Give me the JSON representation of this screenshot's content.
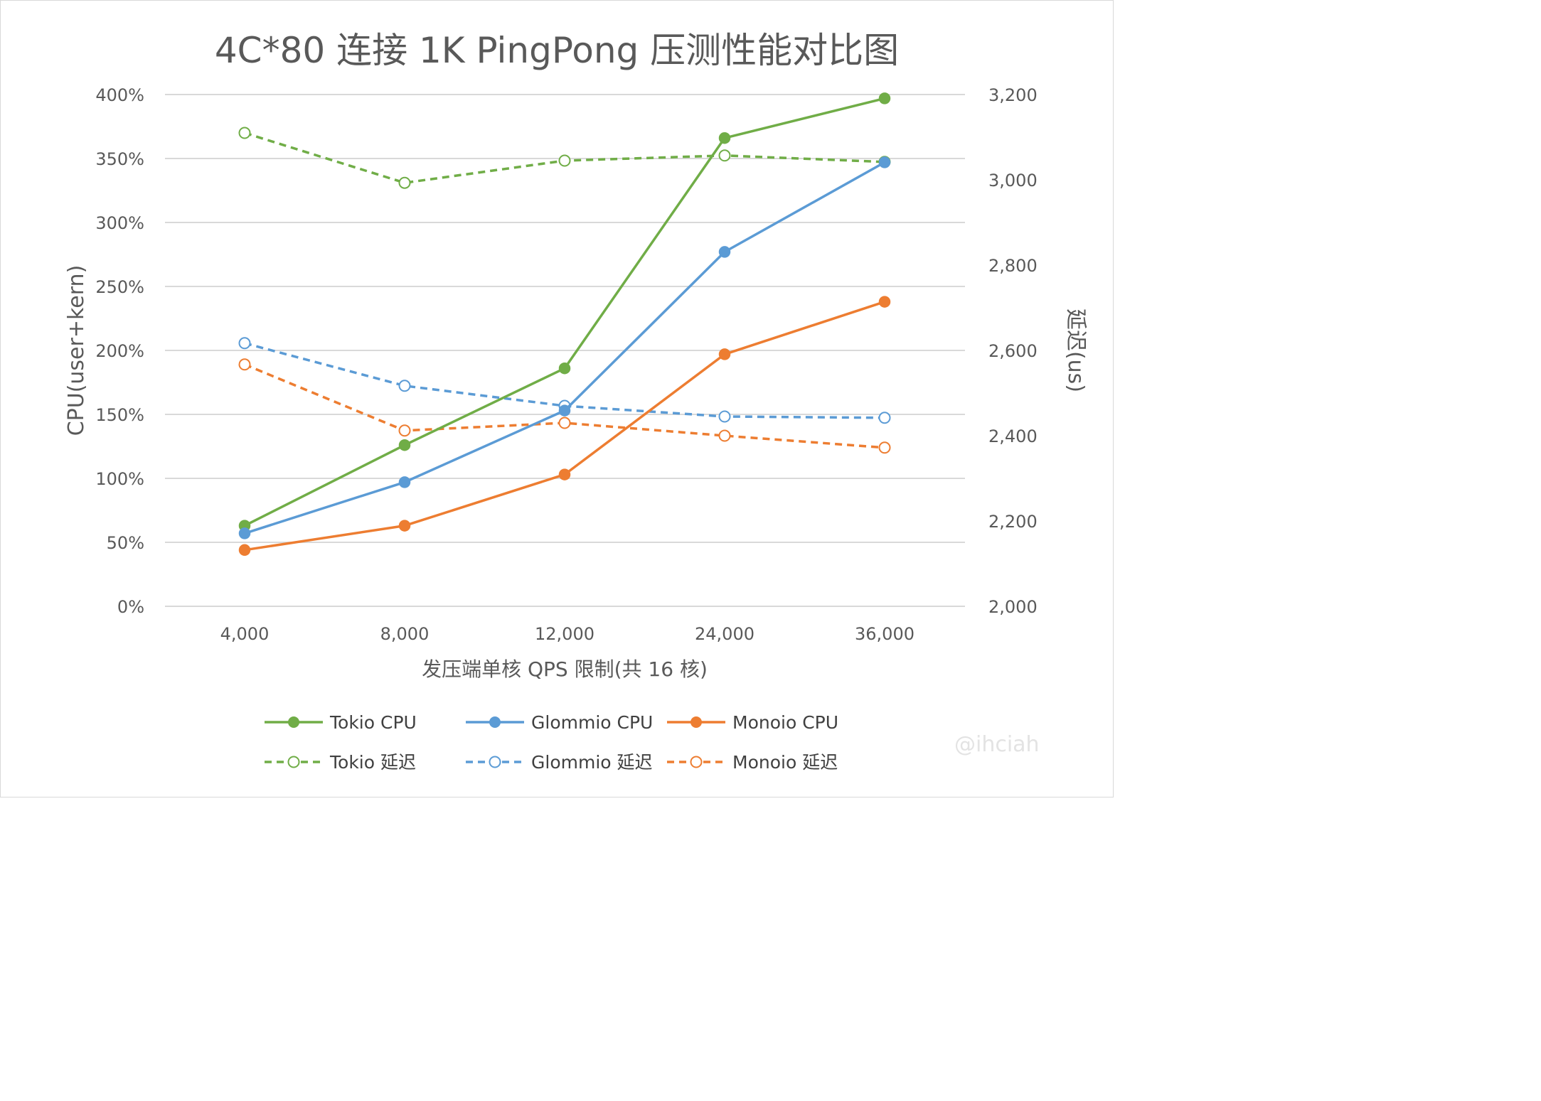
{
  "chart_data": {
    "type": "line",
    "title": "4C*80 连接 1K PingPong 压测性能对比图",
    "xlabel": "发压端单核 QPS 限制(共 16 核)",
    "ylabel": "CPU(user+kern)",
    "y2label": "延迟(us)",
    "categories": [
      "4,000",
      "8,000",
      "12,000",
      "24,000",
      "36,000"
    ],
    "ylim": [
      0,
      400
    ],
    "y_ticks": [
      0,
      50,
      100,
      150,
      200,
      250,
      300,
      350,
      400
    ],
    "y_tick_labels": [
      "0%",
      "50%",
      "100%",
      "150%",
      "200%",
      "250%",
      "300%",
      "350%",
      "400%"
    ],
    "y2lim": [
      2000,
      3200
    ],
    "y2_ticks": [
      2000,
      2200,
      2400,
      2600,
      2800,
      3000,
      3200
    ],
    "y2_tick_labels": [
      "2,000",
      "2,200",
      "2,400",
      "2,600",
      "2,800",
      "3,000",
      "3,200"
    ],
    "grid": true,
    "legend_position": "bottom",
    "series": [
      {
        "name": "Tokio CPU",
        "axis": "left",
        "style": "solid",
        "color": "#70ad47",
        "values": [
          63,
          126,
          186,
          366,
          397
        ]
      },
      {
        "name": "Glommio CPU",
        "axis": "left",
        "style": "solid",
        "color": "#5b9bd5",
        "values": [
          57,
          97,
          153,
          277,
          347
        ]
      },
      {
        "name": "Monoio CPU",
        "axis": "left",
        "style": "solid",
        "color": "#ed7d31",
        "values": [
          44,
          63,
          103,
          197,
          238
        ]
      },
      {
        "name": "Tokio 延迟",
        "axis": "right",
        "style": "dashed",
        "color": "#70ad47",
        "values": [
          3110,
          2993,
          3045,
          3057,
          3042
        ]
      },
      {
        "name": "Glommio 延迟",
        "axis": "right",
        "style": "dashed",
        "color": "#5b9bd5",
        "values": [
          2617,
          2517,
          2470,
          2445,
          2442
        ]
      },
      {
        "name": "Monoio 延迟",
        "axis": "right",
        "style": "dashed",
        "color": "#ed7d31",
        "values": [
          2567,
          2412,
          2430,
          2400,
          2372
        ]
      }
    ]
  },
  "watermark": "@ihciah"
}
